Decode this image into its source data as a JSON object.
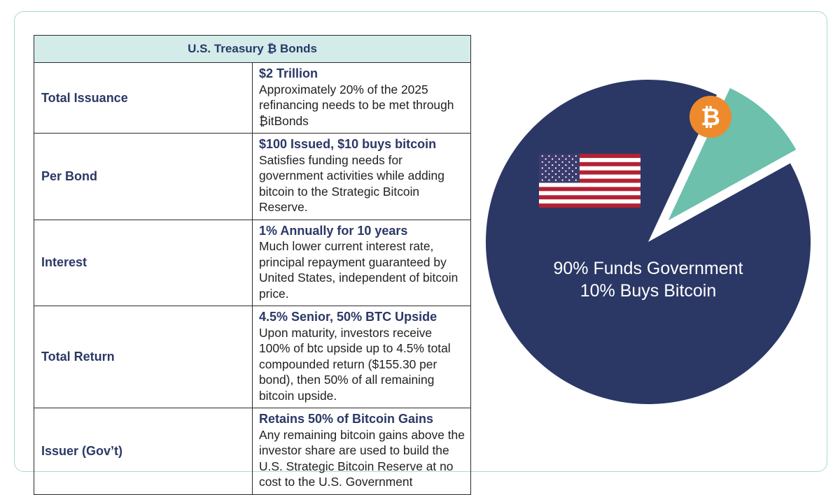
{
  "table": {
    "title": "U.S. Treasury ₿ Bonds",
    "rows": [
      {
        "label": "Total Issuance",
        "headline": "$2 Trillion",
        "text": "Approximately 20% of the 2025 refinancing needs to be met through ₿itBonds"
      },
      {
        "label": "Per Bond",
        "headline": "$100 Issued, $10 buys bitcoin",
        "text": "Satisfies funding needs for government activities while adding bitcoin to the Strategic Bitcoin Reserve."
      },
      {
        "label": "Interest",
        "headline": "1% Annually for 10 years",
        "text": "Much lower current interest rate, principal repayment guaranteed by United States, independent of bitcoin price."
      },
      {
        "label": "Total Return",
        "headline": "4.5% Senior, 50% BTC Upside",
        "text": "Upon maturity, investors receive 100% of btc upside up to 4.5% total compounded return ($155.30 per bond), then 50% of all remaining bitcoin upside."
      },
      {
        "label": "Issuer (Gov’t)",
        "headline": "Retains 50% of Bitcoin Gains",
        "text": "Any remaining bitcoin gains above the investor share are used to build the U.S. Strategic Bitcoin Reserve at no cost to the U.S. Government"
      }
    ]
  },
  "chart_data": {
    "type": "pie",
    "slices": [
      {
        "label": "Funds Government",
        "value": 90,
        "color": "#2b3866",
        "icon": "us-flag-icon"
      },
      {
        "label": "Buys Bitcoin",
        "value": 10,
        "color": "#6cc0ac",
        "icon": "bitcoin-icon",
        "exploded": true
      }
    ],
    "annotation_lines": [
      "90% Funds Government",
      "10% Buys Bitcoin"
    ],
    "bitcoin_symbol": "₿",
    "bitcoin_badge_color": "#ee8a2c"
  }
}
